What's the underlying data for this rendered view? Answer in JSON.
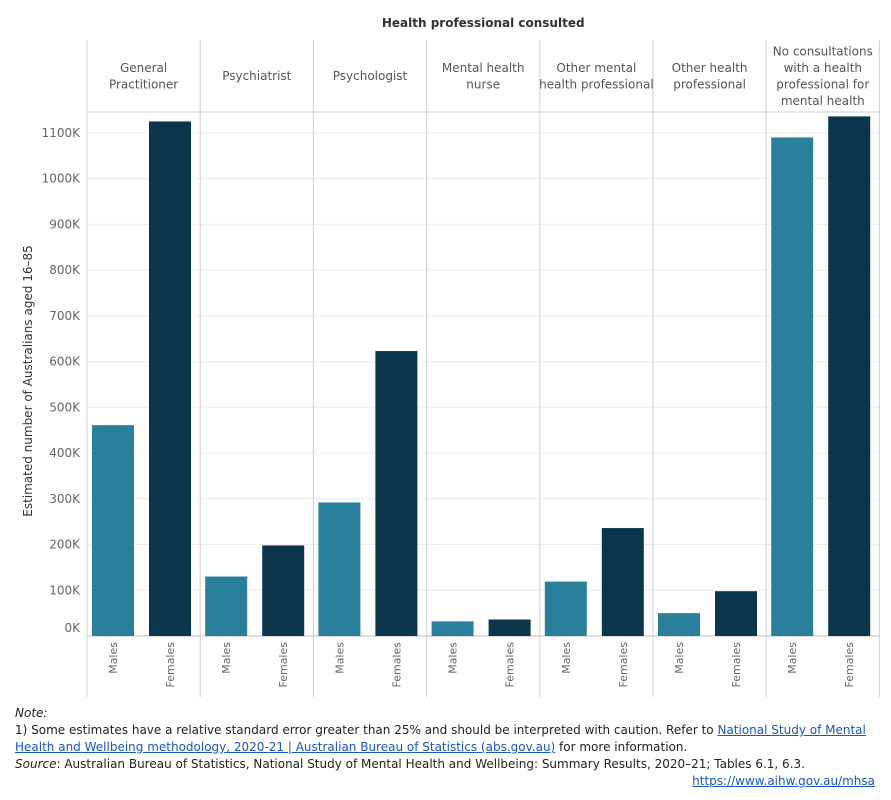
{
  "chart_data": {
    "type": "bar",
    "title": "Health professional consulted",
    "ylabel": "Estimated number of Australians aged 16–85",
    "ylim": [
      0,
      1150000
    ],
    "y_ticks": [
      0,
      100000,
      200000,
      300000,
      400000,
      500000,
      600000,
      700000,
      800000,
      900000,
      1000000,
      1100000
    ],
    "y_tick_labels": [
      "0K",
      "100K",
      "200K",
      "300K",
      "400K",
      "500K",
      "600K",
      "700K",
      "800K",
      "900K",
      "1000K",
      "1100K"
    ],
    "grid": true,
    "series_colors": {
      "Males": "#2a7f9a",
      "Females": "#0b364d"
    },
    "categories": [
      {
        "label_lines": [
          "General",
          "Practitioner"
        ],
        "males": 461000,
        "females": 1125000
      },
      {
        "label_lines": [
          "Psychiatrist"
        ],
        "males": 130000,
        "females": 198000
      },
      {
        "label_lines": [
          "Psychologist"
        ],
        "males": 292000,
        "females": 623000
      },
      {
        "label_lines": [
          "Mental health",
          "nurse"
        ],
        "males": 32000,
        "females": 36000
      },
      {
        "label_lines": [
          "Other mental",
          "health professional"
        ],
        "males": 119000,
        "females": 236000
      },
      {
        "label_lines": [
          "Other health",
          "professional"
        ],
        "males": 50000,
        "females": 98000
      },
      {
        "label_lines": [
          "No consultations",
          "with a health",
          "professional for",
          "mental health"
        ],
        "males": 1090000,
        "females": 1136000
      }
    ],
    "sub_labels": [
      "Males",
      "Females"
    ]
  },
  "notes": {
    "note_label": "Note:",
    "line1_text": "1) Some estimates have a relative standard error greater than 25% and should be interpreted with caution. Refer to ",
    "link_text": "National Study of Mental Health and Wellbeing methodology, 2020-21 | Australian Bureau of Statistics (abs.gov.au)",
    "line1_tail": " for more information.",
    "source_label": "Source",
    "source_text": ": Australian Bureau of Statistics, National Study of Mental Health and Wellbeing: Summary Results, 2020–21; Tables 6.1, 6.3.",
    "url": "https://www.aihw.gov.au/mhsa"
  }
}
